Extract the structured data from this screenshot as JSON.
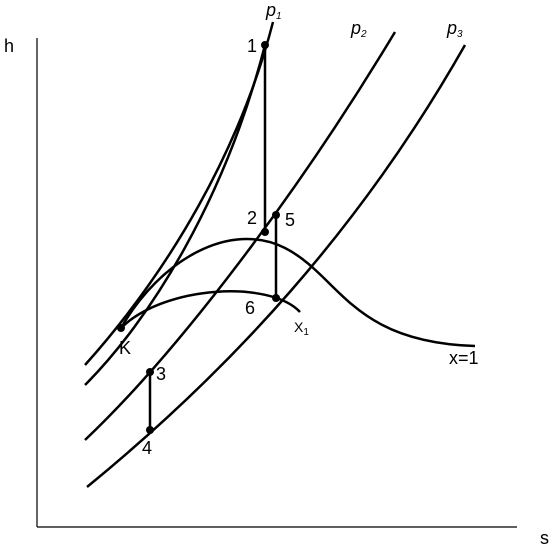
{
  "axes": {
    "y_label": "h",
    "x_label": "s"
  },
  "curves": {
    "p1": {
      "base": "p",
      "sub": "1"
    },
    "p2": {
      "base": "p",
      "sub": "2"
    },
    "p3": {
      "base": "p",
      "sub": "3"
    },
    "saturation": "x=1",
    "quality": {
      "base": "X",
      "sub": "1"
    }
  },
  "points": [
    "1",
    "2",
    "3",
    "4",
    "5",
    "6",
    "K"
  ]
}
